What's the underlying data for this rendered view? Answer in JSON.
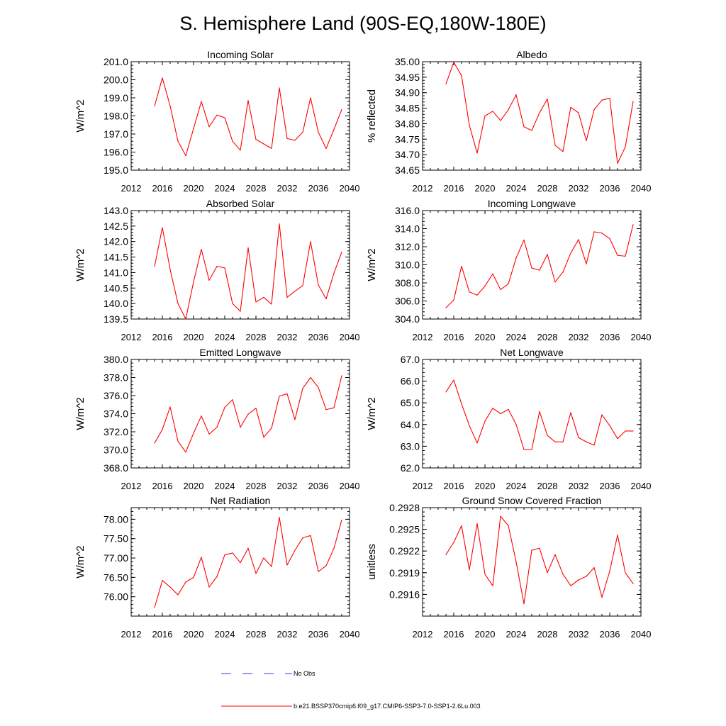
{
  "title": "S. Hemisphere Land (90S-EQ,180W-180E)",
  "colors": {
    "model_line": "#ff0000",
    "obs_line": "#3a3ad0",
    "axis": "#000000"
  },
  "legend": {
    "obs_label": "No Obs",
    "model_label": "b.e21.BSSP370cmip6.f09_g17.CMIP6-SSP3-7.0-SSP1-2.6Lu.003"
  },
  "chart_data": [
    {
      "type": "line",
      "title": "Incoming Solar",
      "ylabel": "W/m^2",
      "xlim": [
        2012,
        2040
      ],
      "xticks": [
        2012,
        2016,
        2020,
        2024,
        2028,
        2032,
        2036,
        2040
      ],
      "xtick_labels": [
        "2012",
        "2016",
        "2020",
        "2024",
        "2028",
        "2032",
        "2036",
        "2040"
      ],
      "ylim": [
        195.0,
        201.0
      ],
      "yticks": [
        195.0,
        196.0,
        197.0,
        198.0,
        199.0,
        200.0,
        201.0
      ],
      "ytick_labels": [
        "195.0",
        "196.0",
        "197.0",
        "198.0",
        "199.0",
        "200.0",
        "201.0"
      ],
      "x": [
        2015,
        2016,
        2017,
        2018,
        2019,
        2020,
        2021,
        2022,
        2023,
        2024,
        2025,
        2026,
        2027,
        2028,
        2029,
        2030,
        2031,
        2032,
        2033,
        2034,
        2035,
        2036,
        2037,
        2038,
        2039
      ],
      "series": [
        {
          "name": "b.e21.BSSP370cmip6.f09_g17.CMIP6-SSP3-7.0-SSP1-2.6Lu.003",
          "values": [
            198.55,
            200.1,
            198.55,
            196.6,
            195.8,
            197.3,
            198.8,
            197.4,
            198.05,
            197.9,
            196.6,
            196.1,
            198.85,
            196.7,
            196.45,
            196.2,
            199.55,
            196.75,
            196.65,
            197.1,
            199.0,
            197.1,
            196.2,
            197.25,
            198.35
          ]
        }
      ]
    },
    {
      "type": "line",
      "title": "Albedo",
      "ylabel": "% reflected",
      "xlim": [
        2012,
        2040
      ],
      "xticks": [
        2012,
        2016,
        2020,
        2024,
        2028,
        2032,
        2036,
        2040
      ],
      "xtick_labels": [
        "2012",
        "2016",
        "2020",
        "2024",
        "2028",
        "2032",
        "2036",
        "2040"
      ],
      "ylim": [
        34.65,
        35.0
      ],
      "yticks": [
        34.65,
        34.7,
        34.75,
        34.8,
        34.85,
        34.9,
        34.95,
        35.0
      ],
      "ytick_labels": [
        "34.65",
        "34.70",
        "34.75",
        "34.80",
        "34.85",
        "34.90",
        "34.95",
        "35.00"
      ],
      "x": [
        2015,
        2016,
        2017,
        2018,
        2019,
        2020,
        2021,
        2022,
        2023,
        2024,
        2025,
        2026,
        2027,
        2028,
        2029,
        2030,
        2031,
        2032,
        2033,
        2034,
        2035,
        2036,
        2037,
        2038,
        2039
      ],
      "series": [
        {
          "name": "b.e21.BSSP370cmip6.f09_g17.CMIP6-SSP3-7.0-SSP1-2.6Lu.003",
          "values": [
            34.928,
            34.998,
            34.955,
            34.795,
            34.705,
            34.825,
            34.84,
            34.81,
            34.845,
            34.893,
            34.79,
            34.778,
            34.835,
            34.88,
            34.73,
            34.71,
            34.853,
            34.835,
            34.745,
            34.845,
            34.876,
            34.882,
            34.672,
            34.725,
            34.872
          ]
        }
      ]
    },
    {
      "type": "line",
      "title": "Absorbed Solar",
      "ylabel": "W/m^2",
      "xlim": [
        2012,
        2040
      ],
      "xticks": [
        2012,
        2016,
        2020,
        2024,
        2028,
        2032,
        2036,
        2040
      ],
      "xtick_labels": [
        "2012",
        "2016",
        "2020",
        "2024",
        "2028",
        "2032",
        "2036",
        "2040"
      ],
      "ylim": [
        139.5,
        143.0
      ],
      "yticks": [
        139.5,
        140.0,
        140.5,
        141.0,
        141.5,
        142.0,
        142.5,
        143.0
      ],
      "ytick_labels": [
        "139.5",
        "140.0",
        "140.5",
        "141.0",
        "141.5",
        "142.0",
        "142.5",
        "143.0"
      ],
      "x": [
        2015,
        2016,
        2017,
        2018,
        2019,
        2020,
        2021,
        2022,
        2023,
        2024,
        2025,
        2026,
        2027,
        2028,
        2029,
        2030,
        2031,
        2032,
        2033,
        2034,
        2035,
        2036,
        2037,
        2038,
        2039
      ],
      "series": [
        {
          "name": "b.e21.BSSP370cmip6.f09_g17.CMIP6-SSP3-7.0-SSP1-2.6Lu.003",
          "values": [
            141.2,
            142.45,
            141.1,
            140.0,
            139.5,
            140.7,
            141.75,
            140.75,
            141.2,
            141.15,
            140.0,
            139.75,
            141.8,
            140.05,
            140.2,
            139.98,
            142.57,
            140.2,
            140.4,
            140.58,
            142.0,
            140.6,
            140.15,
            140.98,
            141.66
          ]
        }
      ]
    },
    {
      "type": "line",
      "title": "Incoming Longwave",
      "ylabel": "W/m^2",
      "xlim": [
        2012,
        2040
      ],
      "xticks": [
        2012,
        2016,
        2020,
        2024,
        2028,
        2032,
        2036,
        2040
      ],
      "xtick_labels": [
        "2012",
        "2016",
        "2020",
        "2024",
        "2028",
        "2032",
        "2036",
        "2040"
      ],
      "ylim": [
        304.0,
        316.0
      ],
      "yticks": [
        304.0,
        306.0,
        308.0,
        310.0,
        312.0,
        314.0,
        316.0
      ],
      "ytick_labels": [
        "304.0",
        "306.0",
        "308.0",
        "310.0",
        "312.0",
        "314.0",
        "316.0"
      ],
      "x": [
        2015,
        2016,
        2017,
        2018,
        2019,
        2020,
        2021,
        2022,
        2023,
        2024,
        2025,
        2026,
        2027,
        2028,
        2029,
        2030,
        2031,
        2032,
        2033,
        2034,
        2035,
        2036,
        2037,
        2038,
        2039
      ],
      "series": [
        {
          "name": "b.e21.BSSP370cmip6.f09_g17.CMIP6-SSP3-7.0-SSP1-2.6Lu.003",
          "values": [
            305.25,
            306.1,
            309.85,
            307.0,
            306.65,
            307.65,
            309.0,
            307.25,
            307.9,
            310.75,
            312.75,
            309.65,
            309.4,
            311.15,
            308.1,
            309.2,
            311.3,
            312.8,
            310.1,
            313.65,
            313.5,
            312.9,
            311.05,
            310.95,
            314.45
          ]
        }
      ]
    },
    {
      "type": "line",
      "title": "Emitted Longwave",
      "ylabel": "W/m^2",
      "xlim": [
        2012,
        2040
      ],
      "xticks": [
        2012,
        2016,
        2020,
        2024,
        2028,
        2032,
        2036,
        2040
      ],
      "xtick_labels": [
        "2012",
        "2016",
        "2020",
        "2024",
        "2028",
        "2032",
        "2036",
        "2040"
      ],
      "ylim": [
        368.0,
        380.0
      ],
      "yticks": [
        368.0,
        370.0,
        372.0,
        374.0,
        376.0,
        378.0,
        380.0
      ],
      "ytick_labels": [
        "368.0",
        "370.0",
        "372.0",
        "374.0",
        "376.0",
        "378.0",
        "380.0"
      ],
      "x": [
        2015,
        2016,
        2017,
        2018,
        2019,
        2020,
        2021,
        2022,
        2023,
        2024,
        2025,
        2026,
        2027,
        2028,
        2029,
        2030,
        2031,
        2032,
        2033,
        2034,
        2035,
        2036,
        2037,
        2038,
        2039
      ],
      "series": [
        {
          "name": "b.e21.BSSP370cmip6.f09_g17.CMIP6-SSP3-7.0-SSP1-2.6Lu.003",
          "values": [
            370.75,
            372.25,
            374.75,
            370.95,
            369.75,
            371.85,
            373.75,
            371.75,
            372.5,
            374.7,
            375.55,
            372.5,
            373.95,
            374.6,
            371.4,
            372.4,
            375.95,
            376.2,
            373.35,
            376.8,
            378.0,
            376.9,
            374.45,
            374.65,
            378.2
          ]
        }
      ]
    },
    {
      "type": "line",
      "title": "Net Longwave",
      "ylabel": "W/m^2",
      "xlim": [
        2012,
        2040
      ],
      "xticks": [
        2012,
        2016,
        2020,
        2024,
        2028,
        2032,
        2036,
        2040
      ],
      "xtick_labels": [
        "2012",
        "2016",
        "2020",
        "2024",
        "2028",
        "2032",
        "2036",
        "2040"
      ],
      "ylim": [
        62.0,
        67.0
      ],
      "yticks": [
        62.0,
        63.0,
        64.0,
        65.0,
        66.0,
        67.0
      ],
      "ytick_labels": [
        "62.0",
        "63.0",
        "64.0",
        "65.0",
        "66.0",
        "67.0"
      ],
      "x": [
        2015,
        2016,
        2017,
        2018,
        2019,
        2020,
        2021,
        2022,
        2023,
        2024,
        2025,
        2026,
        2027,
        2028,
        2029,
        2030,
        2031,
        2032,
        2033,
        2034,
        2035,
        2036,
        2037,
        2038,
        2039
      ],
      "series": [
        {
          "name": "b.e21.BSSP370cmip6.f09_g17.CMIP6-SSP3-7.0-SSP1-2.6Lu.003",
          "values": [
            65.5,
            66.05,
            64.95,
            63.95,
            63.15,
            64.15,
            64.75,
            64.5,
            64.7,
            64.0,
            62.85,
            62.85,
            64.6,
            63.5,
            63.2,
            63.2,
            64.55,
            63.4,
            63.2,
            63.05,
            64.45,
            63.95,
            63.35,
            63.7,
            63.7
          ]
        }
      ]
    },
    {
      "type": "line",
      "title": "Net Radiation",
      "ylabel": "W/m^2",
      "xlim": [
        2012,
        2040
      ],
      "xticks": [
        2012,
        2016,
        2020,
        2024,
        2028,
        2032,
        2036,
        2040
      ],
      "xtick_labels": [
        "2012",
        "2016",
        "2020",
        "2024",
        "2028",
        "2032",
        "2036",
        "2040"
      ],
      "ylim": [
        75.5,
        78.3
      ],
      "yticks": [
        76.0,
        76.5,
        77.0,
        77.5,
        78.0
      ],
      "ytick_labels": [
        "76.00",
        "76.50",
        "77.00",
        "77.50",
        "78.00"
      ],
      "x": [
        2015,
        2016,
        2017,
        2018,
        2019,
        2020,
        2021,
        2022,
        2023,
        2024,
        2025,
        2026,
        2027,
        2028,
        2029,
        2030,
        2031,
        2032,
        2033,
        2034,
        2035,
        2036,
        2037,
        2038,
        2039
      ],
      "series": [
        {
          "name": "b.e21.BSSP370cmip6.f09_g17.CMIP6-SSP3-7.0-SSP1-2.6Lu.003",
          "values": [
            75.72,
            76.42,
            76.25,
            76.05,
            76.38,
            76.5,
            77.02,
            76.25,
            76.52,
            77.08,
            77.13,
            76.88,
            77.25,
            76.6,
            77.0,
            76.78,
            78.05,
            76.82,
            77.2,
            77.52,
            77.58,
            76.65,
            76.8,
            77.25,
            77.98
          ]
        }
      ]
    },
    {
      "type": "line",
      "title": "Ground Snow Covered Fraction",
      "ylabel": "unitless",
      "xlim": [
        2012,
        2040
      ],
      "xticks": [
        2012,
        2016,
        2020,
        2024,
        2028,
        2032,
        2036,
        2040
      ],
      "xtick_labels": [
        "2012",
        "2016",
        "2020",
        "2024",
        "2028",
        "2032",
        "2036",
        "2040"
      ],
      "ylim": [
        0.2913,
        0.2928
      ],
      "yticks": [
        0.2916,
        0.2919,
        0.2922,
        0.2925,
        0.2928
      ],
      "ytick_labels": [
        "0.2916",
        "0.2919",
        "0.2922",
        "0.2925",
        "0.2928"
      ],
      "x": [
        2015,
        2016,
        2017,
        2018,
        2019,
        2020,
        2021,
        2022,
        2023,
        2024,
        2025,
        2026,
        2027,
        2028,
        2029,
        2030,
        2031,
        2032,
        2033,
        2034,
        2035,
        2036,
        2037,
        2038,
        2039
      ],
      "series": [
        {
          "name": "b.e21.BSSP370cmip6.f09_g17.CMIP6-SSP3-7.0-SSP1-2.6Lu.003",
          "values": [
            0.29215,
            0.29232,
            0.29255,
            0.29194,
            0.29258,
            0.29188,
            0.29172,
            0.29268,
            0.29255,
            0.29205,
            0.29147,
            0.29221,
            0.29224,
            0.2919,
            0.29215,
            0.29188,
            0.29172,
            0.2918,
            0.29185,
            0.29197,
            0.29156,
            0.29192,
            0.29242,
            0.2919,
            0.29175
          ]
        }
      ]
    }
  ]
}
